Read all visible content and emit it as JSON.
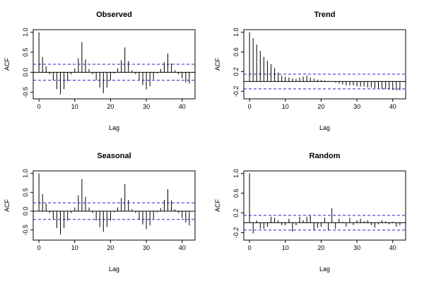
{
  "chart_data": [
    {
      "type": "bar",
      "title": "Observed",
      "xlabel": "Lag",
      "ylabel": "ACF",
      "xlim": [
        0,
        42
      ],
      "ylim": [
        -0.6,
        1.0
      ],
      "xticks": [
        0,
        10,
        20,
        30,
        40
      ],
      "yticks": [
        -0.5,
        0.0,
        0.5,
        1.0
      ],
      "ytick_labels": [
        "-0.5",
        "0.0",
        "0.5",
        "1.0"
      ],
      "ci": 0.2,
      "x": [
        0,
        1,
        2,
        3,
        4,
        5,
        6,
        7,
        8,
        9,
        10,
        11,
        12,
        13,
        14,
        15,
        16,
        17,
        18,
        19,
        20,
        21,
        22,
        23,
        24,
        25,
        26,
        27,
        28,
        29,
        30,
        31,
        32,
        33,
        34,
        35,
        36,
        37,
        38,
        39,
        40,
        41,
        42
      ],
      "values": [
        1.0,
        0.38,
        0.15,
        -0.05,
        -0.2,
        -0.42,
        -0.55,
        -0.42,
        -0.22,
        -0.05,
        0.1,
        0.35,
        0.75,
        0.32,
        0.08,
        -0.05,
        -0.2,
        -0.38,
        -0.52,
        -0.38,
        -0.2,
        -0.03,
        0.1,
        0.3,
        0.62,
        0.28,
        0.05,
        -0.05,
        -0.2,
        -0.32,
        -0.43,
        -0.35,
        -0.18,
        -0.03,
        0.08,
        0.25,
        0.47,
        0.22,
        0.05,
        -0.05,
        -0.15,
        -0.25,
        -0.28
      ]
    },
    {
      "type": "bar",
      "title": "Trend",
      "xlabel": "Lag",
      "ylabel": "ACF",
      "xlim": [
        0,
        42
      ],
      "ylim": [
        -0.3,
        1.0
      ],
      "xticks": [
        0,
        10,
        20,
        30,
        40
      ],
      "yticks": [
        -0.2,
        0.2,
        0.6,
        1.0
      ],
      "ytick_labels": [
        "-0.2",
        "0.2",
        "0.6",
        "1.0"
      ],
      "ci": 0.15,
      "x": [
        0,
        1,
        2,
        3,
        4,
        5,
        6,
        7,
        8,
        9,
        10,
        11,
        12,
        13,
        14,
        15,
        16,
        17,
        18,
        19,
        20,
        21,
        22,
        23,
        24,
        25,
        26,
        27,
        28,
        29,
        30,
        31,
        32,
        33,
        34,
        35,
        36,
        37,
        38,
        39,
        40,
        41,
        42
      ],
      "values": [
        1.0,
        0.88,
        0.75,
        0.62,
        0.5,
        0.42,
        0.35,
        0.27,
        0.18,
        0.12,
        0.1,
        0.08,
        0.06,
        0.05,
        0.08,
        0.1,
        0.12,
        0.08,
        0.06,
        0.04,
        0.03,
        0.02,
        0.01,
        0.0,
        -0.02,
        -0.04,
        -0.06,
        -0.08,
        -0.08,
        -0.08,
        -0.1,
        -0.1,
        -0.1,
        -0.12,
        -0.12,
        -0.14,
        -0.14,
        -0.15,
        -0.15,
        -0.16,
        -0.17,
        -0.18,
        -0.18
      ]
    },
    {
      "type": "bar",
      "title": "Seasonal",
      "xlabel": "Lag",
      "ylabel": "ACF",
      "xlim": [
        0,
        42
      ],
      "ylim": [
        -0.7,
        1.0
      ],
      "xticks": [
        0,
        10,
        20,
        30,
        40
      ],
      "yticks": [
        -0.5,
        0.0,
        0.5,
        1.0
      ],
      "ytick_labels": [
        "-0.5",
        "0.0",
        "0.5",
        "1.0"
      ],
      "ci": 0.22,
      "x": [
        0,
        1,
        2,
        3,
        4,
        5,
        6,
        7,
        8,
        9,
        10,
        11,
        12,
        13,
        14,
        15,
        16,
        17,
        18,
        19,
        20,
        21,
        22,
        23,
        24,
        25,
        26,
        27,
        28,
        29,
        30,
        31,
        32,
        33,
        34,
        35,
        36,
        37,
        38,
        39,
        40,
        41,
        42
      ],
      "values": [
        1.0,
        0.45,
        0.2,
        -0.05,
        -0.22,
        -0.45,
        -0.62,
        -0.45,
        -0.25,
        -0.05,
        0.1,
        0.42,
        0.85,
        0.38,
        0.1,
        -0.05,
        -0.25,
        -0.42,
        -0.55,
        -0.42,
        -0.25,
        -0.03,
        0.1,
        0.35,
        0.72,
        0.3,
        0.05,
        -0.05,
        -0.22,
        -0.35,
        -0.48,
        -0.38,
        -0.2,
        -0.03,
        0.08,
        0.3,
        0.58,
        0.28,
        0.05,
        -0.05,
        -0.18,
        -0.3,
        -0.38
      ]
    },
    {
      "type": "bar",
      "title": "Random",
      "xlabel": "Lag",
      "ylabel": "ACF",
      "xlim": [
        0,
        42
      ],
      "ylim": [
        -0.3,
        1.0
      ],
      "xticks": [
        0,
        10,
        20,
        30,
        40
      ],
      "yticks": [
        -0.2,
        0.2,
        0.6,
        1.0
      ],
      "ytick_labels": [
        "-0.2",
        "0.2",
        "0.6",
        "1.0"
      ],
      "ci": 0.15,
      "x": [
        0,
        1,
        2,
        3,
        4,
        5,
        6,
        7,
        8,
        9,
        10,
        11,
        12,
        13,
        14,
        15,
        16,
        17,
        18,
        19,
        20,
        21,
        22,
        23,
        24,
        25,
        26,
        27,
        28,
        29,
        30,
        31,
        32,
        33,
        34,
        35,
        36,
        37,
        38,
        39,
        40,
        41,
        42
      ],
      "values": [
        1.0,
        -0.22,
        0.05,
        -0.12,
        -0.12,
        -0.08,
        0.12,
        0.1,
        0.05,
        -0.05,
        -0.05,
        0.08,
        -0.18,
        -0.05,
        0.12,
        0.05,
        0.12,
        0.15,
        -0.15,
        -0.1,
        -0.08,
        0.1,
        -0.15,
        0.3,
        -0.12,
        0.08,
        0.02,
        -0.08,
        0.1,
        -0.05,
        0.05,
        0.08,
        0.03,
        0.05,
        -0.05,
        -0.1,
        -0.03,
        0.05,
        0.03,
        -0.03,
        0.02,
        -0.08,
        -0.05
      ]
    }
  ]
}
